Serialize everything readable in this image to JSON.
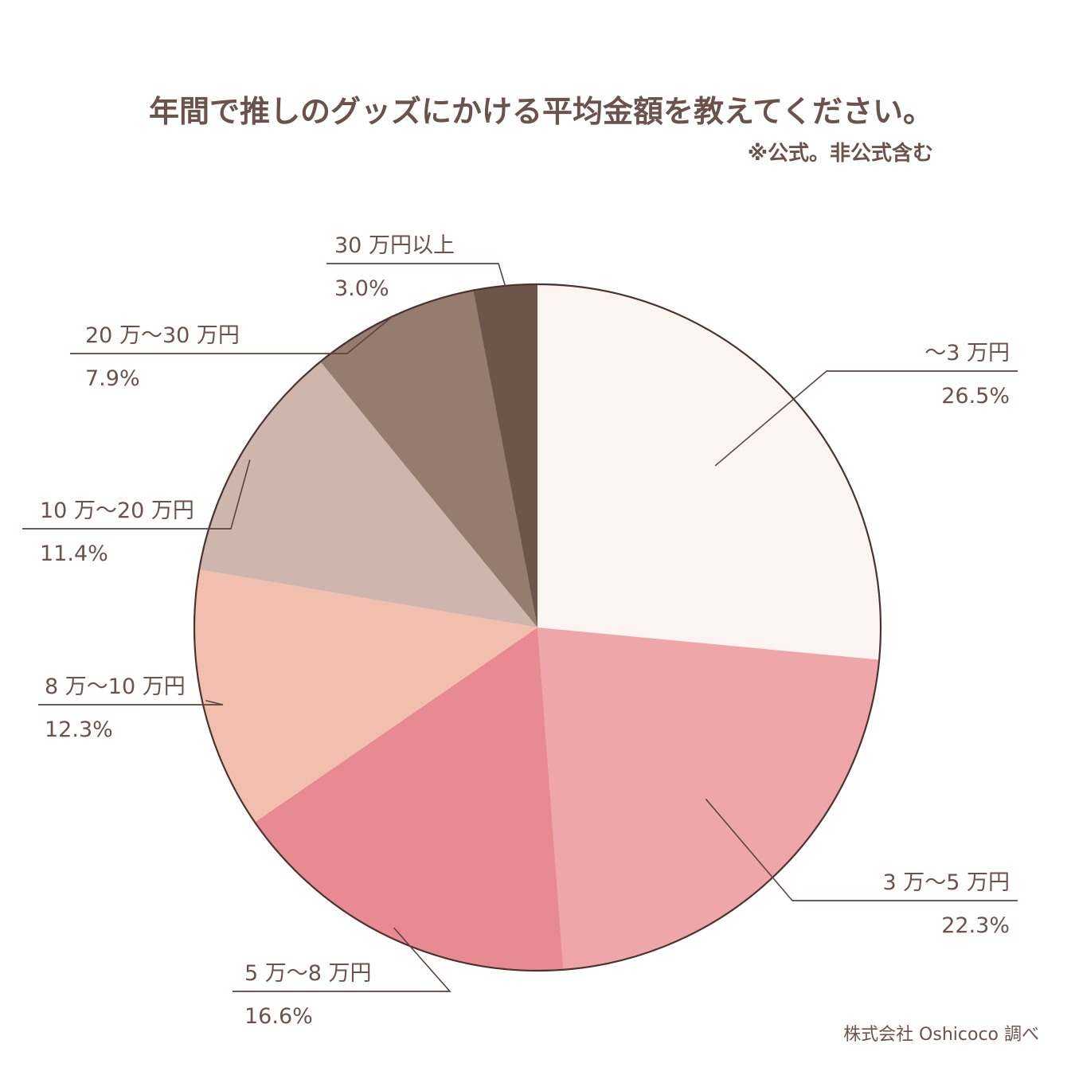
{
  "chart_data": {
    "type": "pie",
    "title": "年間で推しのグッズにかける平均金額を教えてください。",
    "subtitle": "※公式。非公式含む",
    "slices": [
      {
        "label": "〜3 万円",
        "value": 26.5,
        "value_label": "26.5%",
        "color": "#fcf4f1"
      },
      {
        "label": "3 万〜5 万円",
        "value": 22.3,
        "value_label": "22.3%",
        "color": "#eea6aa"
      },
      {
        "label": "5 万〜8 万円",
        "value": 16.6,
        "value_label": "16.6%",
        "color": "#e78a92"
      },
      {
        "label": "8 万〜10 万円",
        "value": 12.3,
        "value_label": "12.3%",
        "color": "#f2beae"
      },
      {
        "label": "10 万〜20 万円",
        "value": 11.4,
        "value_label": "11.4%",
        "color": "#ceb5ae"
      },
      {
        "label": "20 万〜30 万円",
        "value": 7.9,
        "value_label": "7.9%",
        "color": "#967b6f"
      },
      {
        "label": "30 万円以上",
        "value": 3.0,
        "value_label": "3.0%",
        "color": "#6e554c"
      }
    ],
    "start": "12 o'clock",
    "direction": "clockwise",
    "outline_color": "#4a3430"
  },
  "source": "株式会社 Oshicoco 調べ"
}
